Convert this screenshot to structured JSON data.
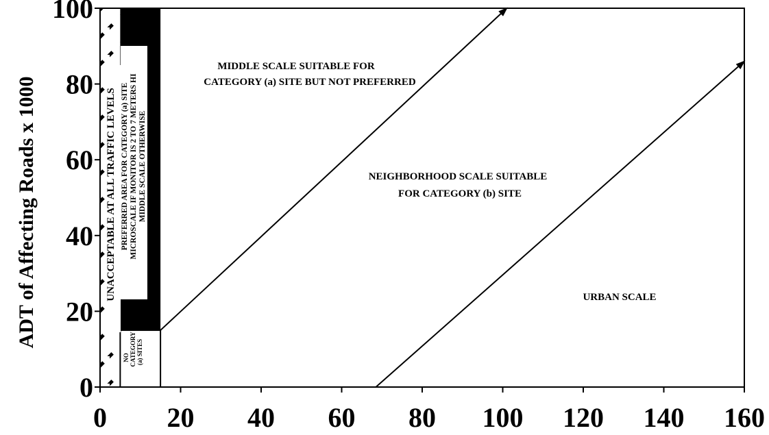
{
  "chart_data": {
    "type": "line",
    "title": "",
    "ylabel": "ADT of Affecting Roads x 1000",
    "xlabel": "",
    "xlim": [
      0,
      160
    ],
    "ylim": [
      0,
      100
    ],
    "x_ticks": [
      "0",
      "20",
      "40",
      "60",
      "80",
      "100",
      "120",
      "140",
      "160"
    ],
    "y_ticks": [
      "0",
      "20",
      "40",
      "60",
      "80",
      "100"
    ],
    "grid": false,
    "boundary_lines": [
      {
        "x": [
          15,
          101
        ],
        "y": [
          15,
          100
        ]
      },
      {
        "x": [
          68.5,
          160
        ],
        "y": [
          0,
          86
        ]
      }
    ],
    "regions": [
      {
        "label": "UNACCEPTABLE AT ALL TRAFFIC LEVELS",
        "x": [
          0,
          5
        ],
        "y": [
          0,
          100
        ],
        "fill": "hatched"
      },
      {
        "label": "PREFERRED AREA FOR CATEGORY (a) SITE MICROSCALE IF MONITOR IS 2 TO 7 METERS HIGH MIDDLE SCALE OTHERWISE",
        "x": [
          5,
          15
        ],
        "y": [
          15,
          100
        ],
        "fill": "black"
      },
      {
        "label": "NO CATEGORY (a) SITES",
        "x": [
          5,
          15
        ],
        "y": [
          0,
          15
        ],
        "fill": "white"
      }
    ],
    "annotations": {
      "middle_line1": "MIDDLE SCALE SUITABLE FOR",
      "middle_line2": "CATEGORY (a) SITE BUT NOT PREFERRED",
      "neighborhood_line1": "NEIGHBORHOOD SCALE SUITABLE",
      "neighborhood_line2": "FOR CATEGORY (b) SITE",
      "urban": "URBAN SCALE",
      "unacceptable": "UNACCEPTABLE AT ALL TRAFFIC LEVELS",
      "preferred_line1": "PREFERRED AREA FOR CATEGORY (a) SITE",
      "preferred_line2": "MICROSCALE IF MONITOR IS 2 TO 7 METERS HI",
      "preferred_line3": "MIDDLE SCALE OTHERWISE",
      "nocat_line1": "NO",
      "nocat_line2": "CATEGORY",
      "nocat_line3": "(a) SITES"
    }
  }
}
